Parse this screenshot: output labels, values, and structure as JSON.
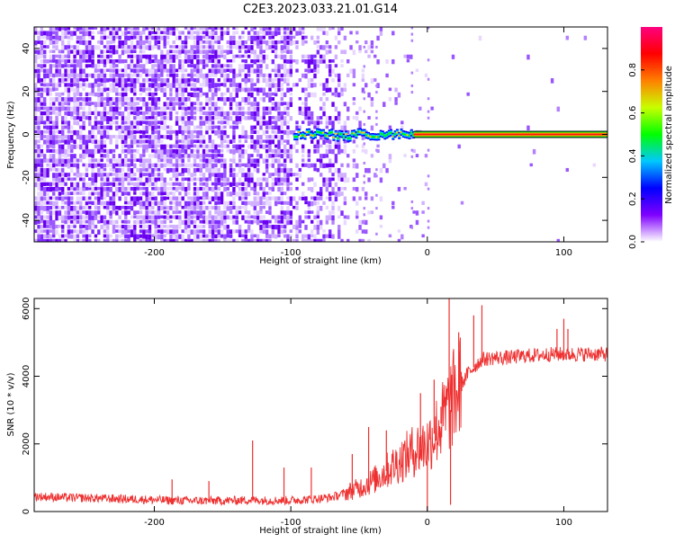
{
  "title": "C2E3.2023.033.21.01.G14",
  "chart_data": [
    {
      "type": "heatmap",
      "xlabel": "Height of straight line (km)",
      "ylabel": "Frequency (Hz)",
      "xlim": [
        -288,
        132
      ],
      "ylim": [
        -50,
        50
      ],
      "xticks": [
        -200,
        -100,
        0,
        100
      ],
      "xtick_labels": [
        "-200",
        "-100",
        "0",
        "100"
      ],
      "yticks": [
        -40,
        -20,
        0,
        20,
        40
      ],
      "ytick_labels": [
        "-40",
        "-20",
        "0",
        "20",
        "40"
      ],
      "colorbar": {
        "label": "Normalized spectral amplitude",
        "range": [
          0,
          1
        ],
        "ticks": [
          0,
          0.2,
          0.4,
          0.6,
          0.8
        ],
        "tick_labels": [
          "0.0",
          "0.2",
          "0.4",
          "0.6",
          "0.8"
        ],
        "colors": [
          "#ffffff",
          "#7f00ff",
          "#0000ff",
          "#00c8ff",
          "#00ff00",
          "#c8ff00",
          "#ff8000",
          "#ff0000",
          "#ff0080"
        ]
      },
      "signal_line": {
        "freq_hz": 0,
        "onset_km": -98,
        "steady_km": -10,
        "x_end_km": 132
      },
      "grid": false
    },
    {
      "type": "line",
      "xlabel": "Height of straight line (km)",
      "ylabel": "SNR (10 * v/v)",
      "xlim": [
        -288,
        132
      ],
      "ylim": [
        0,
        6300
      ],
      "xticks": [
        -200,
        -100,
        0,
        100
      ],
      "xtick_labels": [
        "-200",
        "-100",
        "0",
        "100"
      ],
      "yticks": [
        0,
        2000,
        4000,
        6000
      ],
      "ytick_labels": [
        "0",
        "2000",
        "4000",
        "6000"
      ],
      "line_color": "#ee3030",
      "series": [
        {
          "x": [
            -288,
            -270,
            -250,
            -230,
            -210,
            -190,
            -170,
            -150,
            -140,
            -130,
            -120,
            -110,
            -100,
            -90,
            -80,
            -70,
            -60,
            -50,
            -40,
            -30,
            -20,
            -10,
            0,
            10,
            20,
            30,
            40,
            50,
            60,
            70,
            80,
            90,
            100,
            110,
            120,
            132
          ],
          "values": [
            450,
            420,
            400,
            380,
            360,
            330,
            320,
            320,
            330,
            340,
            330,
            330,
            330,
            350,
            380,
            420,
            550,
            700,
            900,
            1200,
            1500,
            1800,
            2000,
            2600,
            3400,
            4100,
            4500,
            4550,
            4550,
            4600,
            4620,
            4650,
            4650,
            4650,
            4660,
            4650
          ]
        }
      ],
      "spikes": [
        {
          "x": -187,
          "y": 950
        },
        {
          "x": -160,
          "y": 900
        },
        {
          "x": -128,
          "y": 2100
        },
        {
          "x": -105,
          "y": 1300
        },
        {
          "x": -85,
          "y": 1300
        },
        {
          "x": -55,
          "y": 1700
        },
        {
          "x": -43,
          "y": 2500
        },
        {
          "x": -30,
          "y": 2400
        },
        {
          "x": -5,
          "y": 3500
        },
        {
          "x": 2,
          "y": 2600
        },
        {
          "x": 5,
          "y": 3900
        },
        {
          "x": 10,
          "y": 3100
        },
        {
          "x": 16,
          "y": 6300
        },
        {
          "x": 23,
          "y": 5300
        },
        {
          "x": 34,
          "y": 5800
        },
        {
          "x": 40,
          "y": 6100
        },
        {
          "x": 95,
          "y": 5400
        },
        {
          "x": 100,
          "y": 5700
        },
        {
          "x": 103,
          "y": 5400
        }
      ],
      "grid": false
    }
  ]
}
